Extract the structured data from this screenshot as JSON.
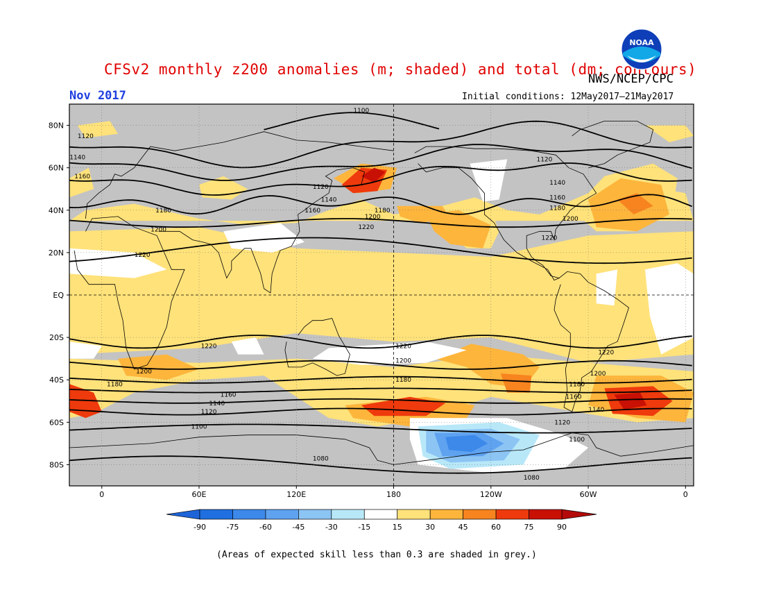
{
  "title": "CFSv2 monthly z200 anomalies (m; shaded) and total (dm; contours)",
  "agency": "NWS/NCEP/CPC",
  "logo_text": "NOAA",
  "valid_month": "Nov 2017",
  "initial_conditions": "Initial conditions: 12May2017–21May2017",
  "footnote": "(Areas of expected skill less than 0.3 are shaded in grey.)",
  "map": {
    "lat_labels": [
      "80N",
      "60N",
      "40N",
      "20N",
      "EQ",
      "20S",
      "40S",
      "60S",
      "80S"
    ],
    "lat_values": [
      80,
      60,
      40,
      20,
      0,
      -20,
      -40,
      -60,
      -80
    ],
    "lon_labels": [
      "0",
      "60E",
      "120E",
      "180",
      "120W",
      "60W",
      "0"
    ],
    "lon_values": [
      0,
      60,
      120,
      180,
      240,
      300,
      360
    ],
    "lon_range": [
      -20,
      365
    ],
    "lat_range": [
      -90,
      90
    ],
    "contour_labels": [
      {
        "text": "1100",
        "lon": 160,
        "lat": 87
      },
      {
        "text": "1120",
        "lon": -10,
        "lat": 75
      },
      {
        "text": "1140",
        "lon": -15,
        "lat": 65
      },
      {
        "text": "1160",
        "lon": -12,
        "lat": 56
      },
      {
        "text": "1180",
        "lon": 38,
        "lat": 40
      },
      {
        "text": "1200",
        "lon": 35,
        "lat": 31
      },
      {
        "text": "1220",
        "lon": 25,
        "lat": 19
      },
      {
        "text": "1120",
        "lon": 135,
        "lat": 51
      },
      {
        "text": "1140",
        "lon": 140,
        "lat": 45
      },
      {
        "text": "1160",
        "lon": 130,
        "lat": 40
      },
      {
        "text": "1180",
        "lon": 173,
        "lat": 40
      },
      {
        "text": "1200",
        "lon": 167,
        "lat": 37
      },
      {
        "text": "1220",
        "lon": 163,
        "lat": 32
      },
      {
        "text": "1120",
        "lon": 273,
        "lat": 64
      },
      {
        "text": "1140",
        "lon": 281,
        "lat": 53
      },
      {
        "text": "1160",
        "lon": 281,
        "lat": 46
      },
      {
        "text": "1180",
        "lon": 281,
        "lat": 41
      },
      {
        "text": "1200",
        "lon": 289,
        "lat": 36
      },
      {
        "text": "1220",
        "lon": 276,
        "lat": 27
      },
      {
        "text": "1220",
        "lon": 66,
        "lat": -24
      },
      {
        "text": "1220",
        "lon": 186,
        "lat": -24
      },
      {
        "text": "1220",
        "lon": 311,
        "lat": -27
      },
      {
        "text": "1200",
        "lon": 26,
        "lat": -36
      },
      {
        "text": "1200",
        "lon": 186,
        "lat": -31
      },
      {
        "text": "1200",
        "lon": 306,
        "lat": -37
      },
      {
        "text": "1180",
        "lon": 8,
        "lat": -42
      },
      {
        "text": "1180",
        "lon": 186,
        "lat": -40
      },
      {
        "text": "1180",
        "lon": 293,
        "lat": -42
      },
      {
        "text": "1160",
        "lon": 78,
        "lat": -47
      },
      {
        "text": "1160",
        "lon": 291,
        "lat": -48
      },
      {
        "text": "1140",
        "lon": 71,
        "lat": -51
      },
      {
        "text": "1140",
        "lon": 305,
        "lat": -54
      },
      {
        "text": "1120",
        "lon": 66,
        "lat": -55
      },
      {
        "text": "1120",
        "lon": 284,
        "lat": -60
      },
      {
        "text": "1100",
        "lon": 60,
        "lat": -62
      },
      {
        "text": "1100",
        "lon": 293,
        "lat": -68
      },
      {
        "text": "1080",
        "lon": 135,
        "lat": -77
      },
      {
        "text": "1080",
        "lon": 265,
        "lat": -86
      }
    ]
  },
  "colorbar": {
    "labels": [
      "-90",
      "-75",
      "-60",
      "-45",
      "-30",
      "-15",
      "15",
      "30",
      "45",
      "60",
      "75",
      "90"
    ],
    "colors": [
      "#1f6fe0",
      "#3c89ea",
      "#5ea2f0",
      "#8cc4f4",
      "#b8e8f8",
      "#ffffff",
      "#ffe27a",
      "#fdb53c",
      "#f7841f",
      "#ee3a0c",
      "#c81004"
    ],
    "end_low_color": "#1e64d8",
    "end_high_color": "#b40a0a"
  },
  "colors": {
    "skill_grey": "#c3c3c3",
    "title_red": "#e00000",
    "month_blue": "#2040e0"
  }
}
